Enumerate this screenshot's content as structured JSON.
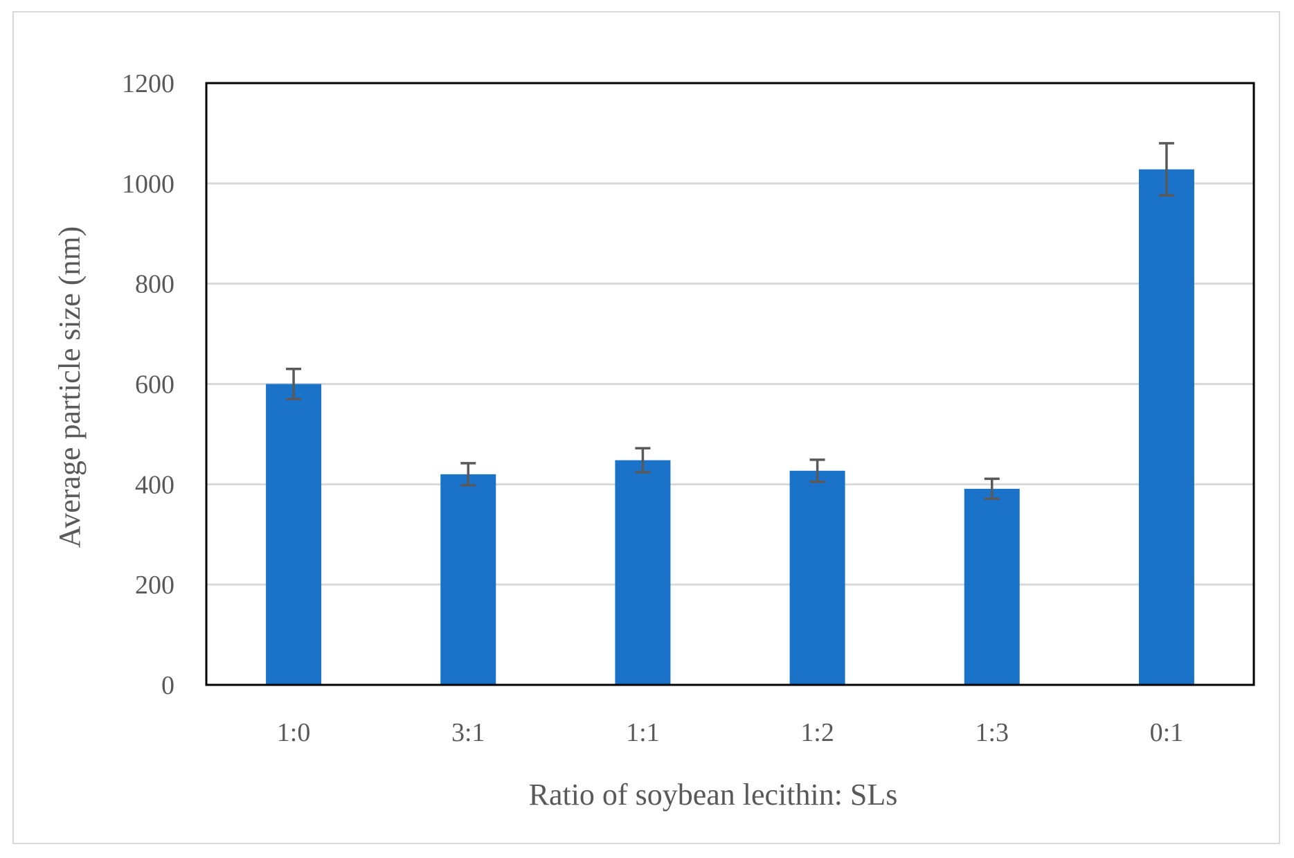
{
  "chart_data": {
    "type": "bar",
    "title": "",
    "xlabel": "Ratio of soybean lecithin: SLs",
    "ylabel": "Average particle size (nm)",
    "categories": [
      "1:0",
      "3:1",
      "1:1",
      "1:2",
      "1:3",
      "0:1"
    ],
    "values": [
      600,
      420,
      448,
      427,
      391,
      1028
    ],
    "errors": [
      30,
      22,
      24,
      22,
      20,
      52
    ],
    "ylim": [
      0,
      1200
    ],
    "yticks": [
      0,
      200,
      400,
      600,
      800,
      1000,
      1200
    ],
    "grid": true,
    "legend": "none",
    "colors": {
      "bar": "#1a73c8",
      "error_bar": "#595959",
      "grid": "#d9d9d9",
      "plot_border": "#000000",
      "text": "#595959"
    }
  }
}
